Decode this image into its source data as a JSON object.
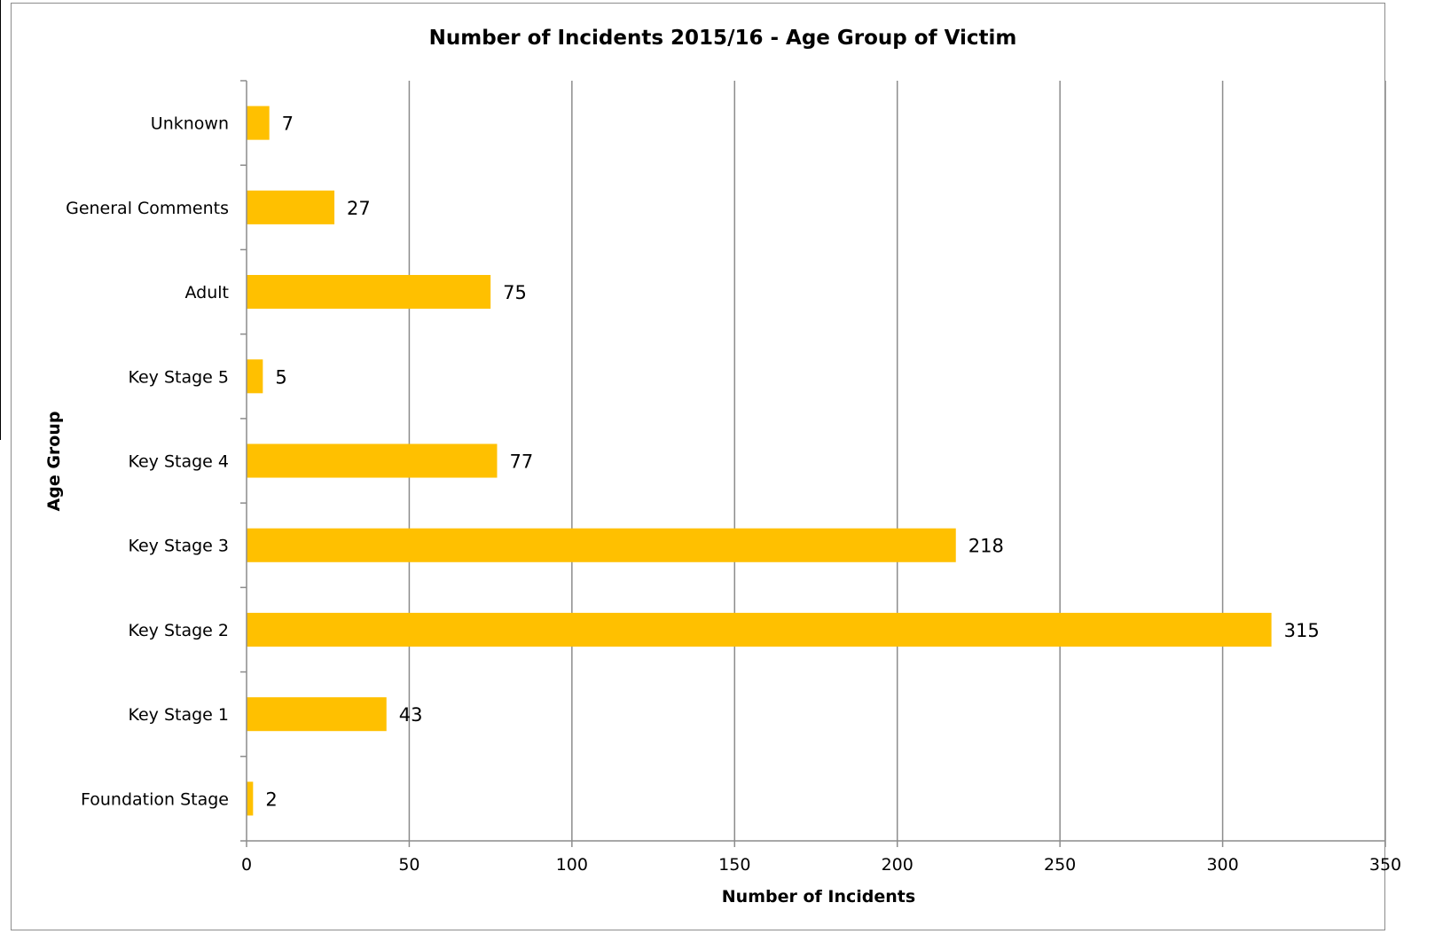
{
  "chart_data": {
    "type": "bar",
    "orientation": "horizontal",
    "title": "Number of Incidents 2015/16 - Age Group of Victim",
    "xlabel": "Number of Incidents",
    "ylabel": "Age Group",
    "categories": [
      "Foundation Stage",
      "Key Stage 1",
      "Key Stage 2",
      "Key Stage 3",
      "Key Stage 4",
      "Key Stage 5",
      "Adult",
      "General Comments",
      "Unknown"
    ],
    "values": [
      2,
      43,
      315,
      218,
      77,
      5,
      75,
      27,
      7
    ],
    "xlim": [
      0,
      350
    ],
    "xticks": [
      "0",
      "50",
      "100",
      "150",
      "200",
      "250",
      "300",
      "350"
    ],
    "grid": "vertical",
    "legend": "none",
    "bar_color": "#FFC000",
    "grid_color": "#8c8c8c"
  }
}
